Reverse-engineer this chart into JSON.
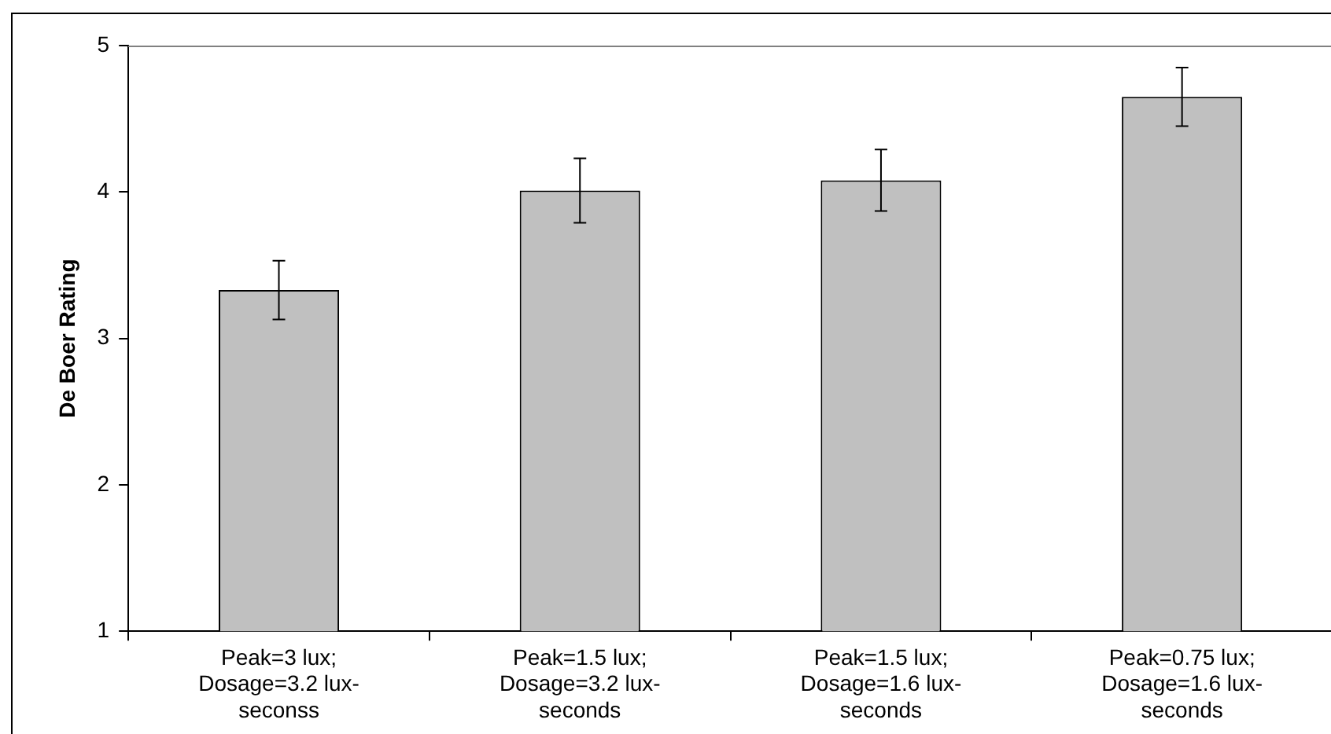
{
  "chart_data": {
    "type": "bar",
    "ylabel": "De Boer Rating",
    "categories": [
      "Peak=3 lux; Dosage=3.2 lux-seconss",
      "Peak=1.5 lux; Dosage=3.2 lux-seconds",
      "Peak=1.5 lux; Dosage=1.6 lux-seconds",
      "Peak=0.75 lux; Dosage=1.6 lux-seconds"
    ],
    "values": [
      3.33,
      4.01,
      4.08,
      4.65
    ],
    "errors": [
      0.2,
      0.22,
      0.21,
      0.2
    ],
    "color": "#c0c0c0",
    "ylim": [
      1,
      5
    ],
    "yticks": [
      1,
      2,
      3,
      4,
      5
    ],
    "grid": false,
    "legend": false
  }
}
